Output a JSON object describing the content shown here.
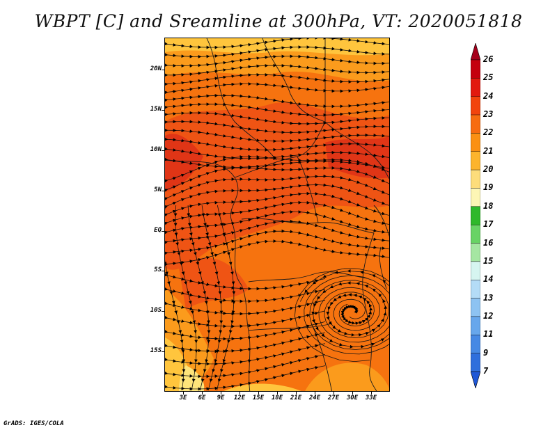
{
  "title": "WBPT [C] and Sreamline at 300hPa, VT: 2020051818",
  "footer": "GrADS: IGES/COLA",
  "map": {
    "lon_range": [
      0,
      36
    ],
    "lat_range": [
      -20,
      24
    ],
    "y_axis_labels": [
      {
        "text": "20N",
        "lat": 20
      },
      {
        "text": "15N",
        "lat": 15
      },
      {
        "text": "10N",
        "lat": 10
      },
      {
        "text": "5N",
        "lat": 5
      },
      {
        "text": "EQ",
        "lat": 0
      },
      {
        "text": "5S",
        "lat": -5
      },
      {
        "text": "10S",
        "lat": -10
      },
      {
        "text": "15S",
        "lat": -15
      }
    ],
    "x_axis_labels": [
      {
        "text": "3E",
        "lon": 3
      },
      {
        "text": "6E",
        "lon": 6
      },
      {
        "text": "9E",
        "lon": 9
      },
      {
        "text": "12E",
        "lon": 12
      },
      {
        "text": "15E",
        "lon": 15
      },
      {
        "text": "18E",
        "lon": 18
      },
      {
        "text": "21E",
        "lon": 21
      },
      {
        "text": "24E",
        "lon": 24
      },
      {
        "text": "27E",
        "lon": 27
      },
      {
        "text": "30E",
        "lon": 30
      },
      {
        "text": "33E",
        "lon": 33
      }
    ],
    "field_colors": {
      "c20": "#ffc53d",
      "c21": "#fb9b1c",
      "c22": "#f6730f",
      "c23": "#ef5414",
      "c24": "#e03516",
      "c19": "#fde47a"
    },
    "cyclone_center": {
      "lon": 30,
      "lat": -10
    }
  },
  "colorbar": {
    "labels": [
      "26",
      "25",
      "24",
      "23",
      "22",
      "21",
      "20",
      "19",
      "18",
      "17",
      "16",
      "15",
      "14",
      "13",
      "12",
      "11",
      "9",
      "7"
    ],
    "colors": [
      "#a5001b",
      "#c4000e",
      "#e21a0f",
      "#f2440d",
      "#f76c10",
      "#fb9012",
      "#fdb42d",
      "#fddd7b",
      "#fdf6b5",
      "#2fb82b",
      "#68d365",
      "#a5e6a2",
      "#d6f5f0",
      "#b4dcf7",
      "#8dc3f2",
      "#67a7ec",
      "#4689e4",
      "#2f6fdc",
      "#1f57d6"
    ]
  }
}
